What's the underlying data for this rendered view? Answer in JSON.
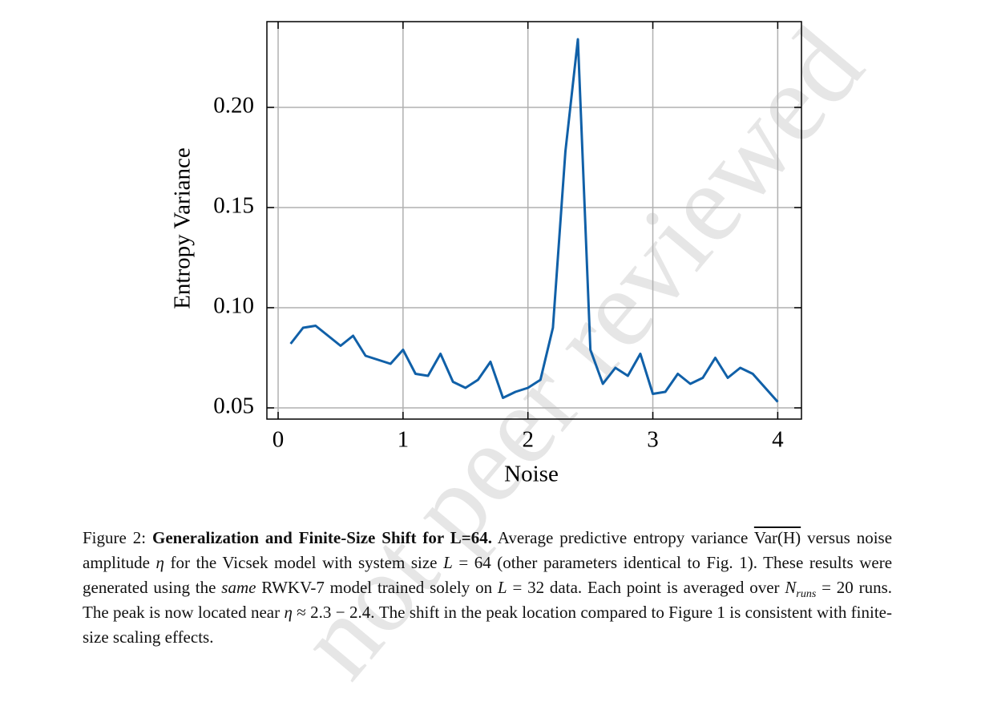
{
  "watermark": "not peer reviewed",
  "chart_data": {
    "type": "line",
    "xlabel": "Noise",
    "ylabel": "Entropy Variance",
    "x": [
      0.1,
      0.2,
      0.3,
      0.4,
      0.5,
      0.6,
      0.7,
      0.8,
      0.9,
      1.0,
      1.1,
      1.2,
      1.3,
      1.4,
      1.5,
      1.6,
      1.7,
      1.8,
      1.9,
      2.0,
      2.1,
      2.2,
      2.3,
      2.4,
      2.5,
      2.6,
      2.7,
      2.8,
      2.9,
      3.0,
      3.1,
      3.2,
      3.3,
      3.4,
      3.5,
      3.6,
      3.7,
      3.8,
      3.9,
      4.0
    ],
    "series": [
      {
        "color": "#1060a8",
        "values": [
          0.082,
          0.09,
          0.091,
          0.086,
          0.081,
          0.086,
          0.076,
          0.074,
          0.072,
          0.079,
          0.067,
          0.066,
          0.077,
          0.063,
          0.06,
          0.064,
          0.073,
          0.055,
          0.058,
          0.06,
          0.064,
          0.09,
          0.178,
          0.234,
          0.079,
          0.062,
          0.07,
          0.066,
          0.077,
          0.057,
          0.058,
          0.067,
          0.062,
          0.065,
          0.075,
          0.065,
          0.07,
          0.067,
          0.06,
          0.053
        ]
      }
    ],
    "xlim": [
      -0.09,
      4.19
    ],
    "ylim": [
      0.0444,
      0.2428
    ],
    "xticks": [
      0,
      1,
      2,
      3,
      4
    ],
    "yticks": [
      {
        "value": 0.05,
        "label": "0.05"
      },
      {
        "value": 0.1,
        "label": "0.10"
      },
      {
        "value": 0.15,
        "label": "0.15"
      },
      {
        "value": 0.2,
        "label": "0.20"
      }
    ],
    "grid": true
  },
  "caption": {
    "parts": [
      "Figure 2:",
      "Generalization and Finite-Size Shift for L=64.",
      "Average predictive entropy variance",
      "Var(H)",
      "versus noise amplitude",
      "η",
      "for the Vicsek model with system size",
      "L",
      "= 64 (other parameters identical to Fig. 1). These results were generated using the",
      "same",
      "RWKV-7 model trained solely on",
      "L",
      "= 32 data. Each point is averaged over",
      "N",
      "runs",
      "= 20 runs. The peak is now located near",
      "η",
      "≈ 2.3 − 2.4. The shift in the peak location compared to Figure 1 is consistent with finite-size scaling effects."
    ]
  }
}
